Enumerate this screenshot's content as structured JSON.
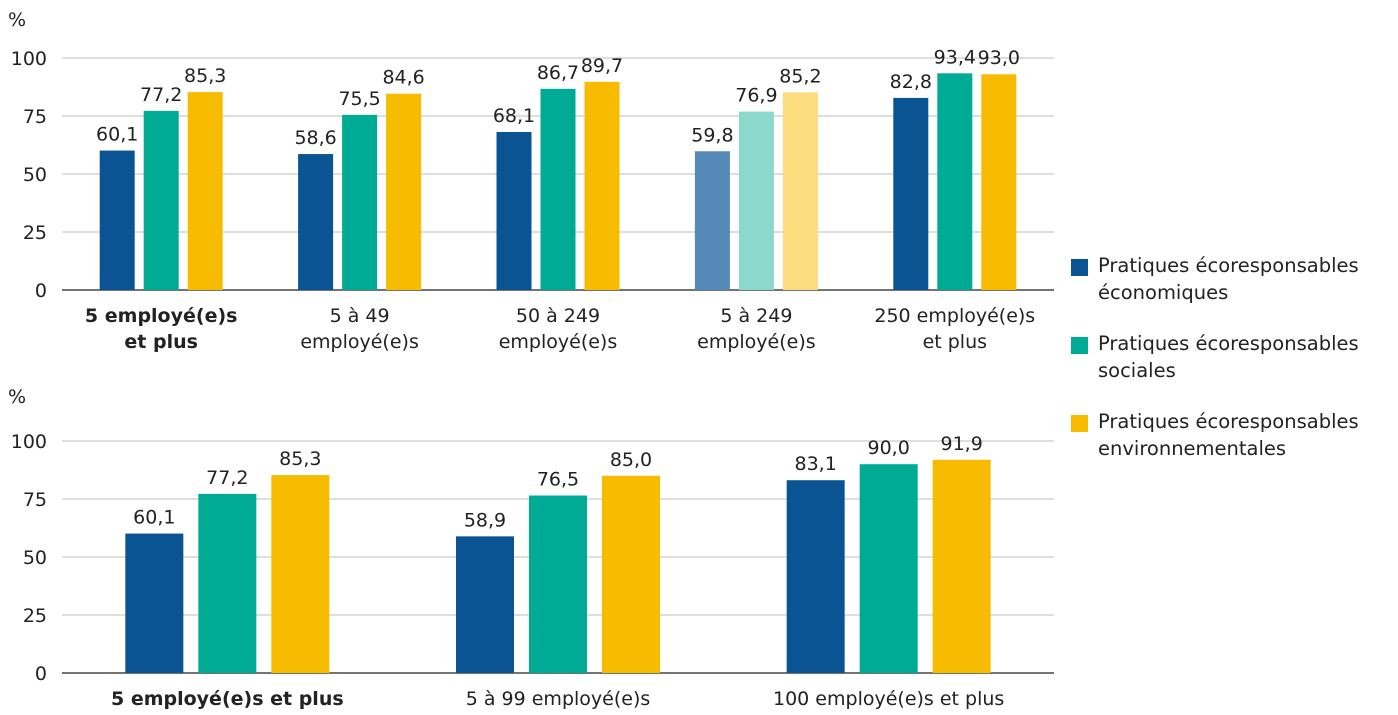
{
  "legend": {
    "items": [
      {
        "label": "Pratiques écoresponsables économiques",
        "color": "#0a5494"
      },
      {
        "label": "Pratiques écoresponsables sociales",
        "color": "#00ab96"
      },
      {
        "label": "Pratiques écoresponsables environnementales",
        "color": "#f7bc00"
      }
    ]
  },
  "chart_data": [
    {
      "type": "bar",
      "ylabel": "%",
      "ylim": [
        0,
        100
      ],
      "yticks": [
        0,
        25,
        50,
        75,
        100
      ],
      "grid": true,
      "legend_position": "right",
      "categories": [
        {
          "lines": [
            "5 employé(e)s",
            "et plus"
          ],
          "bold": true
        },
        {
          "lines": [
            "5 à 49",
            "employé(e)s"
          ],
          "bold": false
        },
        {
          "lines": [
            "50 à 249",
            "employé(e)s"
          ],
          "bold": false
        },
        {
          "lines": [
            "5 à 249",
            "employé(e)s"
          ],
          "bold": false,
          "faded": true
        },
        {
          "lines": [
            "250 employé(e)s",
            "et plus"
          ],
          "bold": false
        }
      ],
      "series": [
        {
          "name": "Pratiques écoresponsables économiques",
          "color": "#0a5494",
          "faded_color": "#5589b7",
          "values": [
            60.1,
            58.6,
            68.1,
            59.8,
            82.8
          ],
          "labels": [
            "60,1",
            "58,6",
            "68,1",
            "59,8",
            "82,8"
          ]
        },
        {
          "name": "Pratiques écoresponsables sociales",
          "color": "#00ab96",
          "faded_color": "#8bd9cc",
          "values": [
            77.2,
            75.5,
            86.7,
            76.9,
            93.4
          ],
          "labels": [
            "77,2",
            "75,5",
            "86,7",
            "76,9",
            "93,4"
          ]
        },
        {
          "name": "Pratiques écoresponsables environnementales",
          "color": "#f7bc00",
          "faded_color": "#fbdd80",
          "values": [
            85.3,
            84.6,
            89.7,
            85.2,
            93.0
          ],
          "labels": [
            "85,3",
            "84,6",
            "89,7",
            "85,2",
            "93,0"
          ]
        }
      ]
    },
    {
      "type": "bar",
      "ylabel": "%",
      "ylim": [
        0,
        100
      ],
      "yticks": [
        0,
        25,
        50,
        75,
        100
      ],
      "grid": true,
      "legend_position": "right",
      "categories": [
        {
          "lines": [
            "5 employé(e)s et plus"
          ],
          "bold": true
        },
        {
          "lines": [
            "5 à 99 employé(e)s"
          ],
          "bold": false
        },
        {
          "lines": [
            "100 employé(e)s et plus"
          ],
          "bold": false
        }
      ],
      "series": [
        {
          "name": "Pratiques écoresponsables économiques",
          "color": "#0a5494",
          "values": [
            60.1,
            58.9,
            83.1
          ],
          "labels": [
            "60,1",
            "58,9",
            "83,1"
          ]
        },
        {
          "name": "Pratiques écoresponsables sociales",
          "color": "#00ab96",
          "values": [
            77.2,
            76.5,
            90.0
          ],
          "labels": [
            "77,2",
            "76,5",
            "90,0"
          ]
        },
        {
          "name": "Pratiques écoresponsables environnementales",
          "color": "#f7bc00",
          "values": [
            85.3,
            85.0,
            91.9
          ],
          "labels": [
            "85,3",
            "85,0",
            "91,9"
          ]
        }
      ]
    }
  ]
}
